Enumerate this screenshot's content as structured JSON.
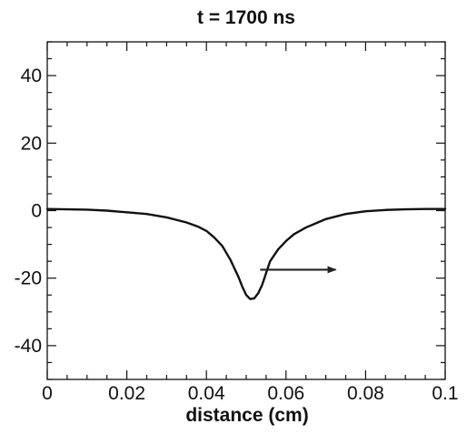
{
  "chart_data": {
    "type": "line",
    "title": "t = 1700 ns",
    "xlabel": "distance (cm)",
    "ylabel": "",
    "xlim": [
      0,
      0.1
    ],
    "ylim": [
      -50,
      50
    ],
    "xticks": [
      0,
      0.02,
      0.04,
      0.06,
      0.08,
      0.1
    ],
    "xtick_labels": [
      "0",
      "0.02",
      "0.04",
      "0.06",
      "0.08",
      "0.1"
    ],
    "yticks": [
      -40,
      -20,
      0,
      20,
      40
    ],
    "ytick_labels": [
      "-40",
      "-20",
      "0",
      "20",
      "40"
    ],
    "grid": false,
    "legend": "none",
    "series": [
      {
        "x": [
          0,
          0.005,
          0.01,
          0.015,
          0.02,
          0.025,
          0.03,
          0.035,
          0.038,
          0.04,
          0.042,
          0.044,
          0.046,
          0.048,
          0.049,
          0.05,
          0.051,
          0.052,
          0.053,
          0.054,
          0.055,
          0.056,
          0.058,
          0.06,
          0.062,
          0.065,
          0.068,
          0.07,
          0.075,
          0.08,
          0.085,
          0.09,
          0.095,
          0.1
        ],
        "y": [
          0.5,
          0.4,
          0.3,
          0,
          -0.5,
          -1,
          -2,
          -3.5,
          -4.8,
          -6,
          -8,
          -10.5,
          -14.5,
          -19.5,
          -22.5,
          -25,
          -26.2,
          -26,
          -24.5,
          -22,
          -18.5,
          -15,
          -11.5,
          -9,
          -7,
          -5,
          -3.5,
          -2.5,
          -1,
          -0.2,
          0.2,
          0.4,
          0.5,
          0.5
        ],
        "color": "#111111"
      }
    ],
    "annotation": {
      "type": "arrow",
      "from": [
        0.0535,
        -17.5
      ],
      "to": [
        0.0725,
        -17.5
      ],
      "color": "#222222"
    }
  }
}
